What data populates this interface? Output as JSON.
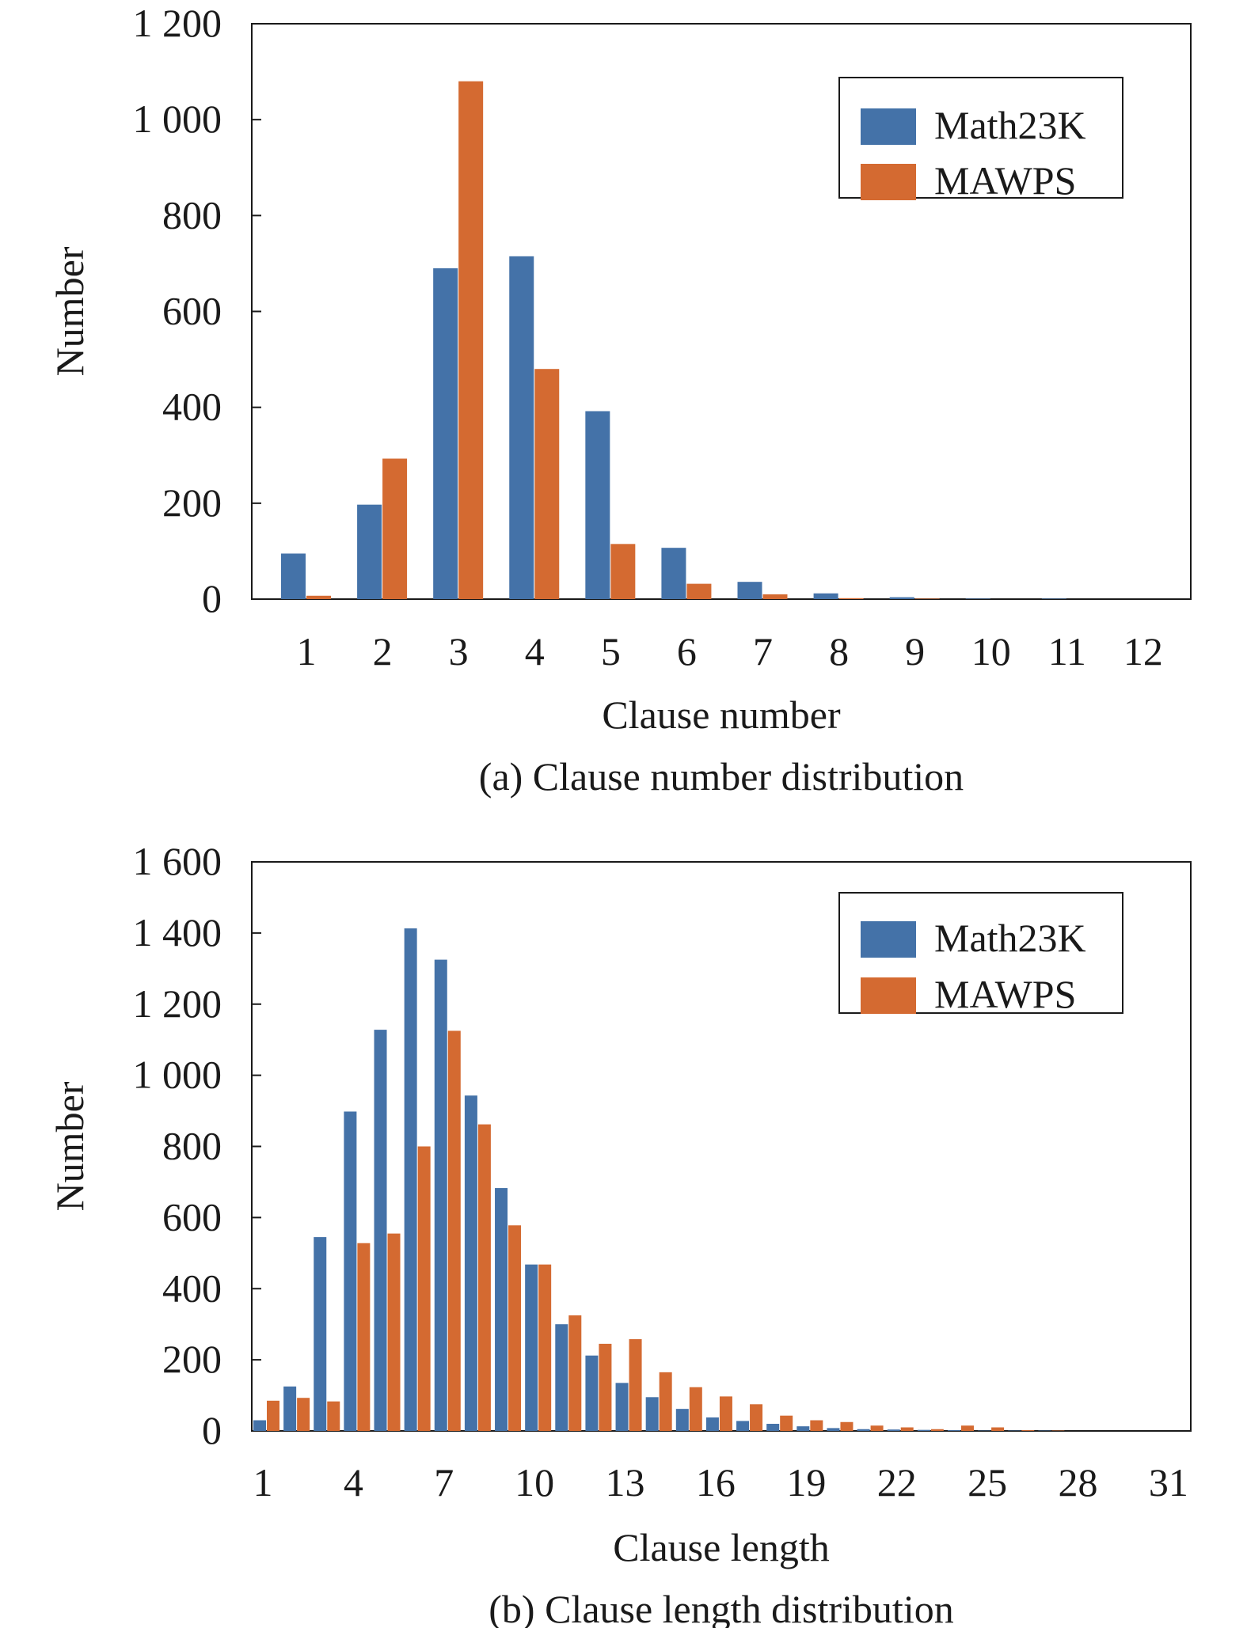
{
  "colors": {
    "math23k": "#4472a8",
    "mawps": "#d46a31",
    "axis": "#1a1a1a"
  },
  "chart_data": [
    {
      "type": "bar",
      "caption": "(a) Clause number distribution",
      "xlabel": "Clause number",
      "ylabel": "Number",
      "ylim": [
        0,
        1200
      ],
      "yticks": [
        0,
        200,
        400,
        600,
        800,
        1000,
        1200
      ],
      "ytick_labels": [
        "0",
        "200",
        "400",
        "600",
        "800",
        "1 000",
        "1 200"
      ],
      "categories": [
        "1",
        "2",
        "3",
        "4",
        "5",
        "6",
        "7",
        "8",
        "9",
        "10",
        "11",
        "12"
      ],
      "xtick_labels": [
        "1",
        "2",
        "3",
        "4",
        "5",
        "6",
        "7",
        "8",
        "9",
        "10",
        "11",
        "12"
      ],
      "legend": {
        "placement": "top-right",
        "entries": [
          "Math23K",
          "MAWPS"
        ]
      },
      "series": [
        {
          "name": "Math23K",
          "values": [
            95,
            197,
            690,
            715,
            392,
            107,
            36,
            12,
            4,
            1,
            1,
            0
          ]
        },
        {
          "name": "MAWPS",
          "values": [
            7,
            293,
            1080,
            480,
            115,
            32,
            10,
            2,
            1,
            0,
            0,
            0
          ]
        }
      ]
    },
    {
      "type": "bar",
      "caption": "(b) Clause length distribution",
      "xlabel": "Clause length",
      "ylabel": "Number",
      "ylim": [
        0,
        1600
      ],
      "yticks": [
        0,
        200,
        400,
        600,
        800,
        1000,
        1200,
        1400,
        1600
      ],
      "ytick_labels": [
        "0",
        "200",
        "400",
        "600",
        "800",
        "1 000",
        "1 200",
        "1 400",
        "1 600"
      ],
      "categories": [
        "1",
        "2",
        "3",
        "4",
        "5",
        "6",
        "7",
        "8",
        "9",
        "10",
        "11",
        "12",
        "13",
        "14",
        "15",
        "16",
        "17",
        "18",
        "19",
        "20",
        "21",
        "22",
        "23",
        "24",
        "25",
        "26",
        "27",
        "28",
        "29",
        "30",
        "31"
      ],
      "xtick_labels": [
        "1",
        "4",
        "7",
        "10",
        "13",
        "16",
        "19",
        "22",
        "25",
        "28",
        "31"
      ],
      "legend": {
        "placement": "top-right",
        "entries": [
          "Math23K",
          "MAWPS"
        ]
      },
      "series": [
        {
          "name": "Math23K",
          "values": [
            30,
            125,
            545,
            898,
            1128,
            1413,
            1325,
            943,
            683,
            468,
            300,
            212,
            135,
            95,
            62,
            38,
            28,
            20,
            13,
            8,
            5,
            4,
            3,
            2,
            1,
            1,
            1,
            0,
            0,
            0,
            0
          ]
        },
        {
          "name": "MAWPS",
          "values": [
            85,
            93,
            83,
            528,
            555,
            800,
            1125,
            862,
            578,
            468,
            325,
            245,
            258,
            165,
            123,
            97,
            75,
            43,
            30,
            25,
            15,
            10,
            5,
            15,
            10,
            2,
            1,
            0,
            0,
            0,
            0
          ]
        }
      ]
    }
  ]
}
